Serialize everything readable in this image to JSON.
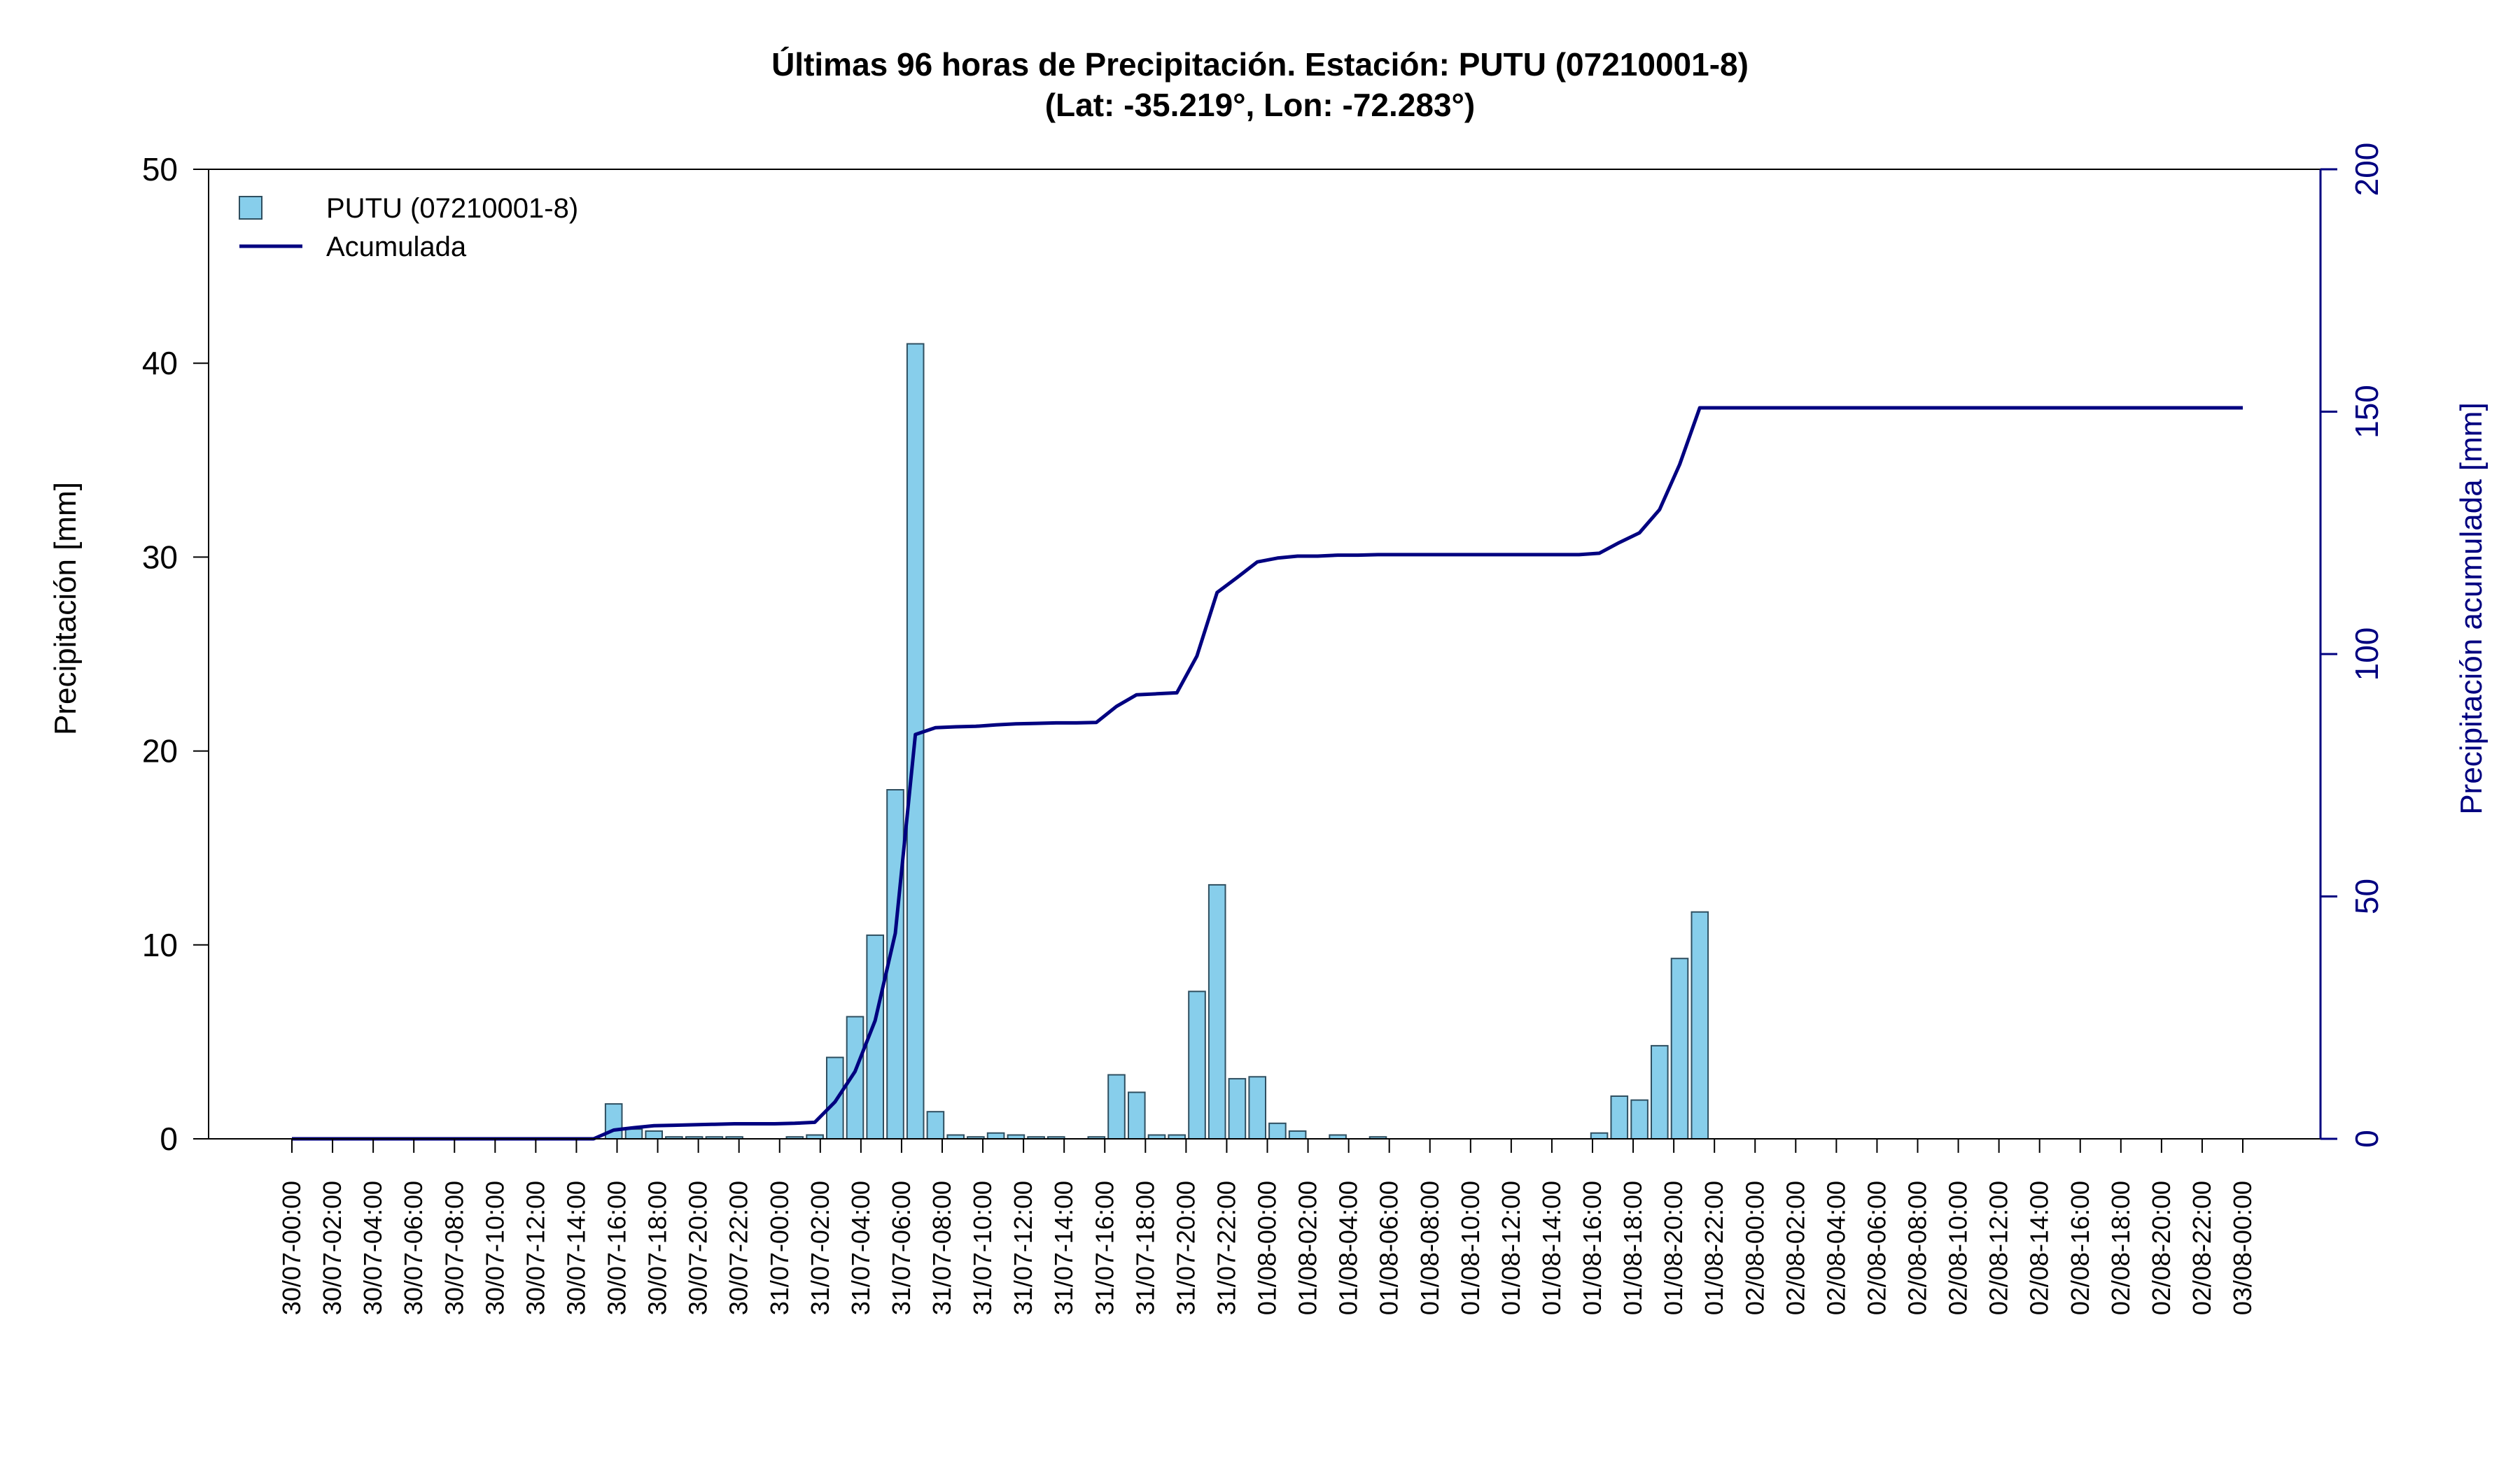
{
  "chart_data": {
    "type": "bar",
    "title_line1": "Últimas 96 horas de Precipitación. Estación: PUTU (07210001-8)",
    "title_line2": "(Lat: -35.219°, Lon: -72.283°)",
    "ylabel": "Precipitación [mm]",
    "ylabel_right": "Precipitación acumulada [mm]",
    "ylim": [
      0,
      50
    ],
    "ylim_right": [
      0,
      200
    ],
    "yticks": [
      0,
      10,
      20,
      30,
      40,
      50
    ],
    "yticks_right": [
      0,
      50,
      100,
      150,
      200
    ],
    "legend_position": "top-left",
    "legend": {
      "bar_label": "PUTU (07210001-8)",
      "line_label": "Acumulada"
    },
    "colors": {
      "bar_fill": "#87ceeb",
      "bar_stroke": "#2f4f60",
      "line": "#000080",
      "axis_right": "#000080"
    },
    "x_tick_labels": [
      "30/07-00:00",
      "30/07-02:00",
      "30/07-04:00",
      "30/07-06:00",
      "30/07-08:00",
      "30/07-10:00",
      "30/07-12:00",
      "30/07-14:00",
      "30/07-16:00",
      "30/07-18:00",
      "30/07-20:00",
      "30/07-22:00",
      "31/07-00:00",
      "31/07-02:00",
      "31/07-04:00",
      "31/07-06:00",
      "31/07-08:00",
      "31/07-10:00",
      "31/07-12:00",
      "31/07-14:00",
      "31/07-16:00",
      "31/07-18:00",
      "31/07-20:00",
      "31/07-22:00",
      "01/08-00:00",
      "01/08-02:00",
      "01/08-04:00",
      "01/08-06:00",
      "01/08-08:00",
      "01/08-10:00",
      "01/08-12:00",
      "01/08-14:00",
      "01/08-16:00",
      "01/08-18:00",
      "01/08-20:00",
      "01/08-22:00",
      "02/08-00:00",
      "02/08-02:00",
      "02/08-04:00",
      "02/08-06:00",
      "02/08-08:00",
      "02/08-10:00",
      "02/08-12:00",
      "02/08-14:00",
      "02/08-16:00",
      "02/08-18:00",
      "02/08-20:00",
      "02/08-22:00",
      "03/08-00:00"
    ],
    "hourly_precip": [
      0,
      0,
      0,
      0,
      0,
      0,
      0,
      0,
      0,
      0,
      0,
      0,
      0,
      0,
      0,
      0,
      1.8,
      0.5,
      0.4,
      0.1,
      0.1,
      0.1,
      0.1,
      0,
      0,
      0.1,
      0.2,
      4.2,
      6.3,
      10.5,
      18.0,
      41.0,
      1.4,
      0.2,
      0.1,
      0.3,
      0.2,
      0.1,
      0.1,
      0,
      0.1,
      3.3,
      2.4,
      0.2,
      0.2,
      7.6,
      13.1,
      3.1,
      3.2,
      0.8,
      0.4,
      0,
      0.2,
      0,
      0.1,
      0,
      0,
      0,
      0,
      0,
      0,
      0,
      0,
      0,
      0,
      0.3,
      2.2,
      2.0,
      4.8,
      9.3,
      11.7,
      0,
      0,
      0,
      0,
      0,
      0,
      0,
      0,
      0,
      0,
      0,
      0,
      0,
      0,
      0,
      0,
      0,
      0,
      0,
      0,
      0,
      0,
      0,
      0,
      0,
      0,
      0
    ],
    "accumulated": [
      0,
      0,
      0,
      0,
      0,
      0,
      0,
      0,
      0,
      0,
      0,
      0,
      0,
      0,
      0,
      0,
      1.8,
      2.3,
      2.7,
      2.8,
      2.9,
      3.0,
      3.1,
      3.1,
      3.1,
      3.2,
      3.4,
      7.6,
      13.9,
      24.4,
      42.4,
      83.4,
      84.8,
      85.0,
      85.1,
      85.4,
      85.6,
      85.7,
      85.8,
      85.8,
      85.9,
      89.2,
      91.6,
      91.8,
      92.0,
      99.6,
      112.7,
      115.8,
      119.0,
      119.8,
      120.2,
      120.2,
      120.4,
      120.4,
      120.5,
      120.5,
      120.5,
      120.5,
      120.5,
      120.5,
      120.5,
      120.5,
      120.5,
      120.5,
      120.5,
      120.8,
      123.0,
      125.0,
      129.8,
      139.1,
      150.8,
      150.8,
      150.8,
      150.8,
      150.8,
      150.8,
      150.8,
      150.8,
      150.8,
      150.8,
      150.8,
      150.8,
      150.8,
      150.8,
      150.8,
      150.8,
      150.8,
      150.8,
      150.8,
      150.8,
      150.8,
      150.8,
      150.8,
      150.8,
      150.8,
      150.8,
      150.8,
      150.8
    ]
  }
}
